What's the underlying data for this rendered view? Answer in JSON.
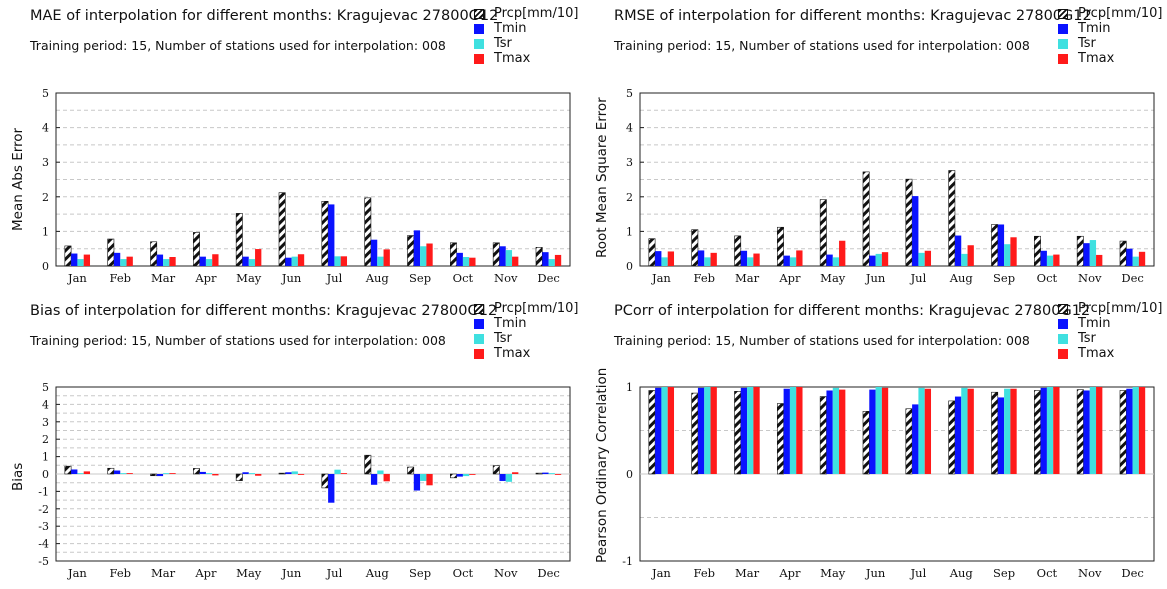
{
  "colors": {
    "Prcp": "#111111",
    "Tmin": "#0a12ff",
    "Tsr": "#3fe0e0",
    "Tmax": "#ff1a1a"
  },
  "legend": [
    "Prcp[mm/10]",
    "Tmin",
    "Tsr",
    "Tmax"
  ],
  "panels": [
    {
      "title": "MAE of interpolation for different months: Kragujevac  27800G12",
      "subtitle": "Training period: 15, Number of stations used for interpolation: 008",
      "ylabel": "Mean Abs Error"
    },
    {
      "title": "RMSE of interpolation for different months: Kragujevac  27800G12",
      "subtitle": "Training period: 15, Number of stations used for interpolation: 008",
      "ylabel": "Root Mean Square Error"
    },
    {
      "title": "Bias of interpolation for different months: Kragujevac  27800G12",
      "subtitle": "Training period: 15, Number of stations used for interpolation: 008",
      "ylabel": "Bias"
    },
    {
      "title": "PCorr of interpolation for different months: Kragujevac  27800G12",
      "subtitle": "Training period: 15, Number of stations used for interpolation: 008",
      "ylabel": "Pearson Ordinary Correlation"
    }
  ],
  "chart_data": [
    {
      "type": "bar",
      "title": "MAE of interpolation for different months: Kragujevac  27800G12",
      "ylabel": "Mean Abs Error",
      "categories": [
        "Jan",
        "Feb",
        "Mar",
        "Apr",
        "May",
        "Jun",
        "Jul",
        "Aug",
        "Sep",
        "Oct",
        "Nov",
        "Dec"
      ],
      "ylim": [
        0,
        5
      ],
      "yticks": [
        0,
        1,
        2,
        3,
        4,
        5
      ],
      "series": [
        {
          "name": "Prcp[mm/10]",
          "values": [
            0.58,
            0.78,
            0.7,
            0.97,
            1.52,
            2.12,
            1.87,
            1.97,
            0.88,
            0.67,
            0.67,
            0.54
          ]
        },
        {
          "name": "Tmin",
          "values": [
            0.36,
            0.38,
            0.33,
            0.27,
            0.27,
            0.24,
            1.78,
            0.76,
            1.03,
            0.38,
            0.57,
            0.4
          ]
        },
        {
          "name": "Tsr",
          "values": [
            0.2,
            0.2,
            0.2,
            0.2,
            0.2,
            0.27,
            0.28,
            0.27,
            0.57,
            0.26,
            0.46,
            0.2
          ]
        },
        {
          "name": "Tmax",
          "values": [
            0.33,
            0.27,
            0.26,
            0.34,
            0.49,
            0.34,
            0.28,
            0.48,
            0.65,
            0.24,
            0.27,
            0.32
          ]
        }
      ]
    },
    {
      "type": "bar",
      "title": "RMSE of interpolation for different months: Kragujevac  27800G12",
      "ylabel": "Root Mean Square Error",
      "categories": [
        "Jan",
        "Feb",
        "Mar",
        "Apr",
        "May",
        "Jun",
        "Jul",
        "Aug",
        "Sep",
        "Oct",
        "Nov",
        "Dec"
      ],
      "ylim": [
        0,
        5
      ],
      "yticks": [
        0,
        1,
        2,
        3,
        4,
        5
      ],
      "series": [
        {
          "name": "Prcp[mm/10]",
          "values": [
            0.79,
            1.05,
            0.87,
            1.12,
            1.92,
            2.72,
            2.51,
            2.76,
            1.2,
            0.86,
            0.86,
            0.72
          ]
        },
        {
          "name": "Tmin",
          "values": [
            0.43,
            0.45,
            0.44,
            0.3,
            0.33,
            0.3,
            2.02,
            0.88,
            1.2,
            0.44,
            0.66,
            0.5
          ]
        },
        {
          "name": "Tsr",
          "values": [
            0.25,
            0.25,
            0.25,
            0.25,
            0.25,
            0.35,
            0.38,
            0.35,
            0.63,
            0.3,
            0.75,
            0.27
          ]
        },
        {
          "name": "Tmax",
          "values": [
            0.42,
            0.38,
            0.36,
            0.45,
            0.73,
            0.4,
            0.44,
            0.6,
            0.83,
            0.33,
            0.32,
            0.41
          ]
        }
      ]
    },
    {
      "type": "bar",
      "title": "Bias of interpolation for different months: Kragujevac  27800G12",
      "ylabel": "Bias",
      "categories": [
        "Jan",
        "Feb",
        "Mar",
        "Apr",
        "May",
        "Jun",
        "Jul",
        "Aug",
        "Sep",
        "Oct",
        "Nov",
        "Dec"
      ],
      "ylim": [
        -5,
        5
      ],
      "yticks": [
        -5,
        -4,
        -3,
        -2,
        -1,
        0,
        1,
        2,
        3,
        4,
        5
      ],
      "series": [
        {
          "name": "Prcp[mm/10]",
          "values": [
            0.45,
            0.33,
            -0.1,
            0.32,
            -0.38,
            0.05,
            -0.8,
            1.08,
            0.4,
            -0.22,
            0.48,
            0.05
          ]
        },
        {
          "name": "Tmin",
          "values": [
            0.26,
            0.2,
            -0.12,
            0.12,
            0.1,
            0.1,
            -1.65,
            -0.62,
            -0.95,
            -0.15,
            -0.4,
            0.08
          ]
        },
        {
          "name": "Tsr",
          "values": [
            0.05,
            0.05,
            0.05,
            0.05,
            0.05,
            0.15,
            0.25,
            0.2,
            -0.4,
            -0.12,
            -0.45,
            0.05
          ]
        },
        {
          "name": "Tmax",
          "values": [
            0.15,
            0.05,
            0.05,
            -0.08,
            -0.1,
            -0.05,
            0.05,
            -0.42,
            -0.65,
            -0.05,
            0.1,
            -0.05
          ]
        }
      ]
    },
    {
      "type": "bar",
      "title": "PCorr of interpolation for different months: Kragujevac  27800G12",
      "ylabel": "Pearson Ordinary Correlation",
      "categories": [
        "Jan",
        "Feb",
        "Mar",
        "Apr",
        "May",
        "Jun",
        "Jul",
        "Aug",
        "Sep",
        "Oct",
        "Nov",
        "Dec"
      ],
      "ylim": [
        -1,
        1
      ],
      "yticks": [
        -1,
        0,
        1
      ],
      "series": [
        {
          "name": "Prcp[mm/10]",
          "values": [
            0.96,
            0.93,
            0.95,
            0.81,
            0.89,
            0.72,
            0.75,
            0.84,
            0.94,
            0.96,
            0.97,
            0.96
          ]
        },
        {
          "name": "Tmin",
          "values": [
            0.99,
            0.99,
            0.99,
            0.98,
            0.96,
            0.97,
            0.8,
            0.89,
            0.88,
            0.99,
            0.96,
            0.98
          ]
        },
        {
          "name": "Tsr",
          "values": [
            1.0,
            1.0,
            1.0,
            1.0,
            0.99,
            1.0,
            0.99,
            0.99,
            0.98,
            1.0,
            1.0,
            1.0
          ]
        },
        {
          "name": "Tmax",
          "values": [
            1.0,
            1.0,
            1.0,
            1.0,
            0.97,
            0.99,
            0.98,
            0.98,
            0.98,
            1.0,
            1.0,
            1.0
          ]
        }
      ]
    }
  ]
}
